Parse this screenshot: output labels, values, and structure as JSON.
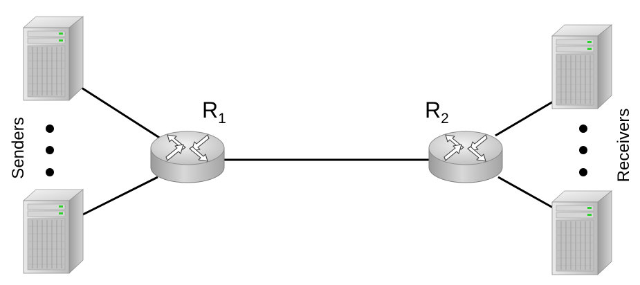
{
  "labels": {
    "router1": "R",
    "router1_sub": "1",
    "router2": "R",
    "router2_sub": "2",
    "senders": "Senders",
    "receivers": "Receivers"
  },
  "icons": {
    "server": "server-tower-icon",
    "router": "router-icon"
  },
  "colors": {
    "link": "#000000",
    "server_body": "#c9c9c9",
    "router_body": "#c4c4c4"
  }
}
